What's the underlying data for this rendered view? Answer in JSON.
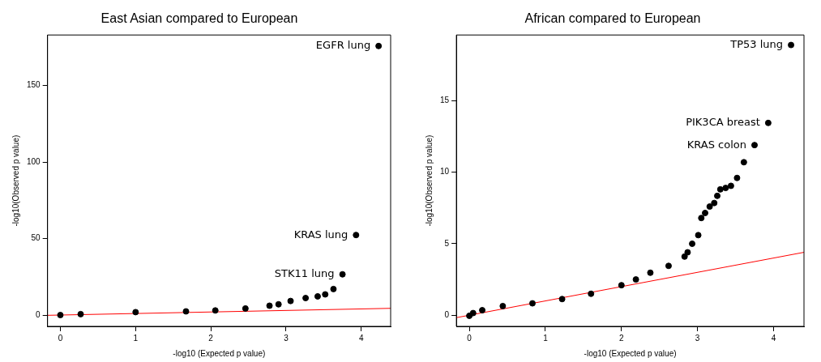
{
  "chart_data": [
    {
      "type": "scatter",
      "title": "East Asian compared to European",
      "xlabel": "-log10 (Expected p value)",
      "ylabel": "-log10(Observed p value)",
      "xlim": [
        -0.17,
        4.39
      ],
      "ylim": [
        -7.4,
        183
      ],
      "xticks": [
        0,
        1,
        2,
        3,
        4
      ],
      "yticks": [
        0,
        50,
        100,
        150
      ],
      "grid": false,
      "legend": false,
      "marker": "circle",
      "series": [
        {
          "color": "#000000",
          "x": [
            0,
            0.27,
            1,
            1.67,
            2.06,
            2.46,
            2.78,
            2.9,
            3.06,
            3.26,
            3.42,
            3.52,
            3.63,
            3.75,
            3.93,
            4.23
          ],
          "values": [
            0,
            0.6,
            1.9,
            2.4,
            3.0,
            4.3,
            6.1,
            7.0,
            9.2,
            11.1,
            12.2,
            13.5,
            17.0,
            26.6,
            52.3,
            175.8
          ]
        },
        {
          "type": "line",
          "color": "#ff0000",
          "marker": "none",
          "x": [
            -0.17,
            4.39
          ],
          "values": [
            -0.17,
            4.39
          ]
        }
      ],
      "annotations": [
        {
          "text": "EGFR lung",
          "x": 4.23,
          "y": 175.8
        },
        {
          "text": "KRAS lung",
          "x": 3.93,
          "y": 52.3
        },
        {
          "text": "STK11 lung",
          "x": 3.75,
          "y": 26.6
        }
      ]
    },
    {
      "type": "scatter",
      "title": "African compared to European",
      "xlabel": "-log10 (Expected p value)",
      "ylabel": "-log10(Observed p value)",
      "xlim": [
        -0.17,
        4.4
      ],
      "ylim": [
        -0.78,
        19.6
      ],
      "xticks": [
        0,
        1,
        2,
        3,
        4
      ],
      "yticks": [
        0,
        5,
        10,
        15
      ],
      "grid": false,
      "legend": false,
      "marker": "circle",
      "series": [
        {
          "color": "#000000",
          "x": [
            0,
            0.05,
            0.17,
            0.44,
            0.83,
            1.22,
            1.6,
            2.0,
            2.19,
            2.38,
            2.62,
            2.83,
            2.87,
            2.93,
            3.01,
            3.05,
            3.1,
            3.16,
            3.22,
            3.26,
            3.3,
            3.37,
            3.44,
            3.52,
            3.61,
            3.75,
            3.93,
            4.23
          ],
          "values": [
            -0.04,
            0.15,
            0.35,
            0.64,
            0.83,
            1.13,
            1.5,
            2.1,
            2.5,
            2.97,
            3.45,
            4.1,
            4.4,
            5.0,
            5.6,
            6.8,
            7.15,
            7.6,
            7.85,
            8.35,
            8.8,
            8.9,
            9.05,
            9.6,
            10.7,
            11.9,
            13.45,
            18.9
          ]
        },
        {
          "type": "line",
          "color": "#ff0000",
          "marker": "none",
          "x": [
            -0.17,
            4.4
          ],
          "values": [
            -0.17,
            4.4
          ]
        }
      ],
      "annotations": [
        {
          "text": "TP53 lung",
          "x": 4.23,
          "y": 18.9
        },
        {
          "text": "PIK3CA breast",
          "x": 3.93,
          "y": 13.45
        },
        {
          "text": "KRAS colon",
          "x": 3.75,
          "y": 11.9
        }
      ]
    }
  ]
}
